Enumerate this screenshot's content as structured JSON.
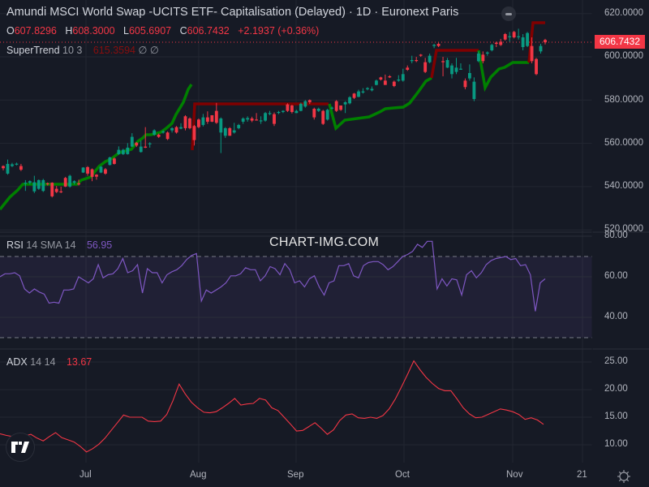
{
  "header": {
    "title": "Amundi MSCI World Swap -UCITS ETF- Capitalisation (Delayed) · 1D · Euronext Paris",
    "ohlc": {
      "o_label": "O",
      "o": "607.8296",
      "h_label": "H",
      "h": "608.3000",
      "l_label": "L",
      "l": "605.6907",
      "c_label": "C",
      "c": "606.7432",
      "change": "+2.1937 (+0.36%)"
    }
  },
  "indicators": {
    "supertrend": {
      "name": "SuperTrend",
      "params": "10 3",
      "value": "615.3594",
      "extra1": "∅",
      "extra2": "∅"
    },
    "rsi": {
      "name": "RSI",
      "params": "14 SMA 14",
      "value": "56.95"
    },
    "adx": {
      "name": "ADX",
      "params": "14 14",
      "value": "13.67"
    }
  },
  "watermark": "CHART-IMG.COM",
  "last_price_tag": "606.7432",
  "price_axis": [
    "620.0000",
    "600.0000",
    "580.0000",
    "560.0000",
    "540.0000",
    "520.0000"
  ],
  "rsi_axis": [
    "80.00",
    "60.00",
    "40.00"
  ],
  "adx_axis": [
    "25.00",
    "20.00",
    "15.00",
    "10.00"
  ],
  "time_axis": [
    "Jul",
    "Aug",
    "Sep",
    "Oct",
    "Nov",
    "21"
  ],
  "colors": {
    "background": "#161a25",
    "up": "#089981",
    "down": "#f23645",
    "supertrend_up": "#008000",
    "supertrend_down": "#800000",
    "rsi": "#7e57c2",
    "adx": "#f23645"
  },
  "chart_data": [
    {
      "type": "candlestick",
      "title": "Amundi MSCI World Swap -UCITS ETF- Capitalisation (Delayed) · 1D · Euronext Paris",
      "ylabel": "Price",
      "ylim": [
        518,
        622
      ],
      "x_ticks": [
        "Jul",
        "Aug",
        "Sep",
        "Oct",
        "Nov",
        "21"
      ],
      "last": 606.7432,
      "candles": [
        [
          549.5,
          548.5,
          549.8,
          547.5
        ],
        [
          546.0,
          550.5,
          552.5,
          545.5
        ],
        [
          549.5,
          550.3,
          551.0,
          549.0
        ],
        [
          550.2,
          550.6,
          551.1,
          549.8
        ],
        [
          549.5,
          547.8,
          550.5,
          547.2
        ],
        [
          541.5,
          541.8,
          543.0,
          538.0
        ],
        [
          541.8,
          542.5,
          542.9,
          541.0
        ],
        [
          537.8,
          542.0,
          545.0,
          537.0
        ],
        [
          539.0,
          543.0,
          543.3,
          538.5
        ],
        [
          538.0,
          543.0,
          543.6,
          537.5
        ],
        [
          541.5,
          541.2,
          541.9,
          540.5
        ],
        [
          541.8,
          535.5,
          542.0,
          535.0
        ],
        [
          539.0,
          537.5,
          540.3,
          537.0
        ],
        [
          537.8,
          537.4,
          540.0,
          537.0
        ],
        [
          544.0,
          540.0,
          544.5,
          539.8
        ],
        [
          540.0,
          545.0,
          545.5,
          539.5
        ],
        [
          541.8,
          542.5,
          542.9,
          541.0
        ],
        [
          541.5,
          541.0,
          543.2,
          540.5
        ],
        [
          546.5,
          548.8,
          549.0,
          546.3
        ],
        [
          549.0,
          546.0,
          549.5,
          545.0
        ],
        [
          548.0,
          544.5,
          548.4,
          542.5
        ],
        [
          545.5,
          544.6,
          545.8,
          543.2
        ],
        [
          546.5,
          549.2,
          549.5,
          546.2
        ],
        [
          548.0,
          546.0,
          548.6,
          545.5
        ],
        [
          550.0,
          553.5,
          553.8,
          549.8
        ],
        [
          553.0,
          550.5,
          553.5,
          550.2
        ],
        [
          555.0,
          557.0,
          558.6,
          554.7
        ],
        [
          555.0,
          557.0,
          557.5,
          554.6
        ],
        [
          555.0,
          558.0,
          560.1,
          554.8
        ],
        [
          558.5,
          563.0,
          564.7,
          558.3
        ],
        [
          560.3,
          559.0,
          560.6,
          558.3
        ],
        [
          556.0,
          558.5,
          561.3,
          555.7
        ],
        [
          558.5,
          558.0,
          567.5,
          557.8
        ],
        [
          560.0,
          560.0,
          560.5,
          558.0
        ],
        [
          564.0,
          566.0,
          566.5,
          563.5
        ],
        [
          564.0,
          563.0,
          564.5,
          562.5
        ],
        [
          565.0,
          565.5,
          566.0,
          564.5
        ],
        [
          565.0,
          562.0,
          565.5,
          561.5
        ],
        [
          566.0,
          567.0,
          567.5,
          565.0
        ],
        [
          567.5,
          565.0,
          568.0,
          564.5
        ],
        [
          566.8,
          567.5,
          569.3,
          566.5
        ],
        [
          572.5,
          567.0,
          573.0,
          566.0
        ],
        [
          571.5,
          567.0,
          572.0,
          566.5
        ],
        [
          568.0,
          561.5,
          568.5,
          559.0
        ],
        [
          571.0,
          567.5,
          571.5,
          567.0
        ],
        [
          568.5,
          572.0,
          573.6,
          567.8
        ],
        [
          572.0,
          570.0,
          574.8,
          569.0
        ],
        [
          573.0,
          570.0,
          572.5,
          569.8
        ],
        [
          575.0,
          569.5,
          578.7,
          569.0
        ],
        [
          565.0,
          571.5,
          572.0,
          555.5
        ],
        [
          563.5,
          567.0,
          567.5,
          562.5
        ],
        [
          567.0,
          563.5,
          567.5,
          563.5
        ],
        [
          565.0,
          566.0,
          569.5,
          564.5
        ],
        [
          567.0,
          568.5,
          569.0,
          566.5
        ],
        [
          570.0,
          571.5,
          572.0,
          569.0
        ],
        [
          571.0,
          571.7,
          572.5,
          570.0
        ],
        [
          571.5,
          570.5,
          572.3,
          569.8
        ],
        [
          571.0,
          570.8,
          574.0,
          570.5
        ],
        [
          570.5,
          570.6,
          572.5,
          569.0
        ],
        [
          570.5,
          574.0,
          574.5,
          570.0
        ],
        [
          574.0,
          574.0,
          575.0,
          573.0
        ],
        [
          573.5,
          569.0,
          574.3,
          568.0
        ],
        [
          574.5,
          574.5,
          575.0,
          573.5
        ],
        [
          574.5,
          575.0,
          575.3,
          574.0
        ],
        [
          578.0,
          575.0,
          578.5,
          574.5
        ],
        [
          577.5,
          574.5,
          577.8,
          573.8
        ],
        [
          574.0,
          575.0,
          575.5,
          574.0
        ],
        [
          575.0,
          578.3,
          578.8,
          574.8
        ],
        [
          577.0,
          579.5,
          580.0,
          576.5
        ],
        [
          580.0,
          579.0,
          580.3,
          578.2
        ],
        [
          576.0,
          572.0,
          576.5,
          571.0
        ],
        [
          575.0,
          576.0,
          576.5,
          574.5
        ],
        [
          575.0,
          569.0,
          575.5,
          568.5
        ],
        [
          571.0,
          575.5,
          576.0,
          570.5
        ],
        [
          576.5,
          576.5,
          577.0,
          575.5
        ],
        [
          579.5,
          575.0,
          580.0,
          574.5
        ],
        [
          577.5,
          575.5,
          577.5,
          575.0
        ],
        [
          578.0,
          579.0,
          579.5,
          574.0
        ],
        [
          578.5,
          581.3,
          581.8,
          578.0
        ],
        [
          583.0,
          581.0,
          583.3,
          580.5
        ],
        [
          581.5,
          584.0,
          584.8,
          581.3
        ],
        [
          583.5,
          584.0,
          585.5,
          583.0
        ],
        [
          585.0,
          585.5,
          586.0,
          584.5
        ],
        [
          584.5,
          585.2,
          586.3,
          584.0
        ],
        [
          587.0,
          589.0,
          589.5,
          586.8
        ],
        [
          590.5,
          589.5,
          590.8,
          589.0
        ],
        [
          589.0,
          587.0,
          591.8,
          587.0
        ],
        [
          591.0,
          590.5,
          591.5,
          590.2
        ],
        [
          588.5,
          586.5,
          589.0,
          586.0
        ],
        [
          589.0,
          589.5,
          591.5,
          588.5
        ],
        [
          589.0,
          592.0,
          594.5,
          588.5
        ],
        [
          595.0,
          594.0,
          596.0,
          593.5
        ],
        [
          598.0,
          598.5,
          600.5,
          597.0
        ],
        [
          598.5,
          598.2,
          600.0,
          597.5
        ],
        [
          601.0,
          600.5,
          601.3,
          600.0
        ],
        [
          597.5,
          593.0,
          599.5,
          592.5
        ],
        [
          597.5,
          600.5,
          601.5,
          597.0
        ],
        [
          605.0,
          605.5,
          606.0,
          604.0
        ],
        [
          606.0,
          605.0,
          606.5,
          604.5
        ],
        [
          598.0,
          597.5,
          600.0,
          591.0
        ],
        [
          595.0,
          598.5,
          599.5,
          594.8
        ],
        [
          592.0,
          596.0,
          597.0,
          590.0
        ],
        [
          593.0,
          595.0,
          599.5,
          592.0
        ],
        [
          594.5,
          594.5,
          597.0,
          594.0
        ],
        [
          589.0,
          586.0,
          590.0,
          585.0
        ],
        [
          590.0,
          592.5,
          596.5,
          589.0
        ],
        [
          580.5,
          588.5,
          590.5,
          579.5
        ],
        [
          598.0,
          601.5,
          602.5,
          597.5
        ],
        [
          601.0,
          598.0,
          602.5,
          597.0
        ],
        [
          601.5,
          602.0,
          602.5,
          600.5
        ],
        [
          603.0,
          605.5,
          606.0,
          602.5
        ],
        [
          606.5,
          606.0,
          607.0,
          604.5
        ],
        [
          607.0,
          605.5,
          608.3,
          605.0
        ],
        [
          610.5,
          608.0,
          611.0,
          607.5
        ],
        [
          609.5,
          609.5,
          611.5,
          607.0
        ],
        [
          611.5,
          609.0,
          612.0,
          608.5
        ],
        [
          609.5,
          609.5,
          613.0,
          608.0
        ],
        [
          604.5,
          609.0,
          610.5,
          603.0
        ],
        [
          605.0,
          611.0,
          611.5,
          604.5
        ],
        [
          605.0,
          598.0,
          609.0,
          597.0
        ],
        [
          599.0,
          592.0,
          599.5,
          591.5
        ],
        [
          602.5,
          605.0,
          606.0,
          601.5
        ],
        [
          607.8,
          606.7,
          608.3,
          605.7
        ]
      ],
      "series": [
        {
          "name": "SuperTrend (uptrend)",
          "color": "#008000"
        },
        {
          "name": "SuperTrend (downtrend)",
          "color": "#800000",
          "last": 615.3594
        }
      ]
    },
    {
      "type": "line",
      "title": "RSI 14 SMA 14",
      "ylim": [
        28,
        82
      ],
      "bands": [
        30,
        70
      ],
      "y_ticks": [
        80,
        60,
        40
      ],
      "last": 56.95,
      "values": [
        60,
        61.5,
        61.5,
        62,
        60.5,
        54,
        52,
        54,
        52.5,
        51.5,
        47,
        47.5,
        47,
        53.5,
        53.5,
        54,
        60,
        58.5,
        57,
        59,
        66,
        59.5,
        61,
        61.5,
        64,
        69,
        62,
        63,
        66,
        52,
        64,
        62,
        62,
        57,
        61,
        62.5,
        63.5,
        65.5,
        68.5,
        70.5,
        71.5,
        48,
        53.5,
        52,
        53.5,
        55,
        57,
        60.5,
        60.5,
        61.5,
        64.5,
        63.5,
        63.5,
        58,
        60.5,
        65,
        64,
        61,
        66.5,
        63.5,
        57,
        58,
        55,
        59,
        60.5,
        55,
        51,
        57,
        58,
        65.5,
        65.5,
        66.5,
        60.5,
        59.5,
        65.5,
        67,
        67.5,
        67.5,
        66,
        63.5,
        65,
        67.5,
        70,
        71,
        72.5,
        76,
        74.5,
        77.5,
        77.5,
        54,
        59,
        55.5,
        59,
        58.5,
        51,
        61,
        63,
        59.5,
        62,
        66,
        68,
        69,
        69.5,
        70,
        68.5,
        69,
        65.5,
        66,
        61,
        43,
        57,
        59
      ]
    },
    {
      "type": "line",
      "title": "ADX 14 14",
      "ylim": [
        7,
        26
      ],
      "y_ticks": [
        25,
        20,
        15,
        10
      ],
      "last": 13.67,
      "values": [
        12,
        11.7,
        11.5,
        11.2,
        11.6,
        11.9,
        11.2,
        10.7,
        11.5,
        12.2,
        11.3,
        10.9,
        10.5,
        9.7,
        8.7,
        9.3,
        10.1,
        11.2,
        12.6,
        14,
        15.4,
        15,
        15,
        15,
        14.3,
        14.2,
        14.3,
        15.5,
        18,
        21,
        19.2,
        17.7,
        16.7,
        15.9,
        15.8,
        16.0,
        16.7,
        17.5,
        18.4,
        17.2,
        17.4,
        17.5,
        18.4,
        18.1,
        16.7,
        16.2,
        15.0,
        13.8,
        12.5,
        12.6,
        13.3,
        14.0,
        13.0,
        11.9,
        12.7,
        14.4,
        15.4,
        15.6,
        14.9,
        14.8,
        15.0,
        14.8,
        15.3,
        16.5,
        18.3,
        20.5,
        22.8,
        25.2,
        23.6,
        22.2,
        21.1,
        20.2,
        19.8,
        19.8,
        18.3,
        16.7,
        15.6,
        14.9,
        15.0,
        15.5,
        16.0,
        16.5,
        16.3,
        16.0,
        15.5,
        14.6,
        14.9,
        14.5,
        13.7
      ]
    }
  ]
}
